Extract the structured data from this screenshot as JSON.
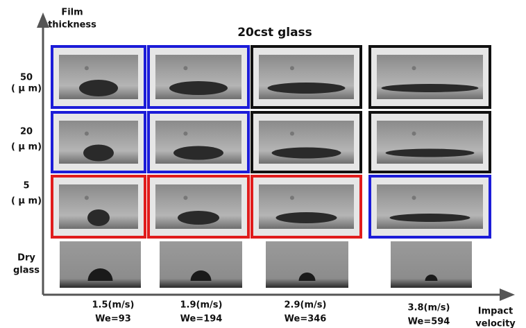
{
  "title": "20cst glass",
  "y_axis_label": [
    "Film",
    "thickness"
  ],
  "x_axis_label": [
    "Impact",
    "velocity"
  ],
  "rows": [
    {
      "label": [
        "50",
        "( μ m)"
      ],
      "frames": [
        "#1c1cd8",
        "#1c1cd8",
        "#111111",
        "#111111"
      ]
    },
    {
      "label": [
        "20",
        "( μ m)"
      ],
      "frames": [
        "#1c1cd8",
        "#1c1cd8",
        "#111111",
        "#111111"
      ]
    },
    {
      "label": [
        "5",
        "( μ m)"
      ],
      "frames": [
        "#e01c1c",
        "#e01c1c",
        "#e01c1c",
        "#1c1cd8"
      ]
    },
    {
      "label": [
        "Dry",
        "glass"
      ]
    }
  ],
  "columns": [
    {
      "velocity": "1.5(m/s)",
      "weber": "We=93"
    },
    {
      "velocity": "1.9(m/s)",
      "weber": "We=194"
    },
    {
      "velocity": "2.9(m/s)",
      "weber": "We=346"
    },
    {
      "velocity": "3.8(m/s)",
      "weber": "We=594"
    }
  ]
}
